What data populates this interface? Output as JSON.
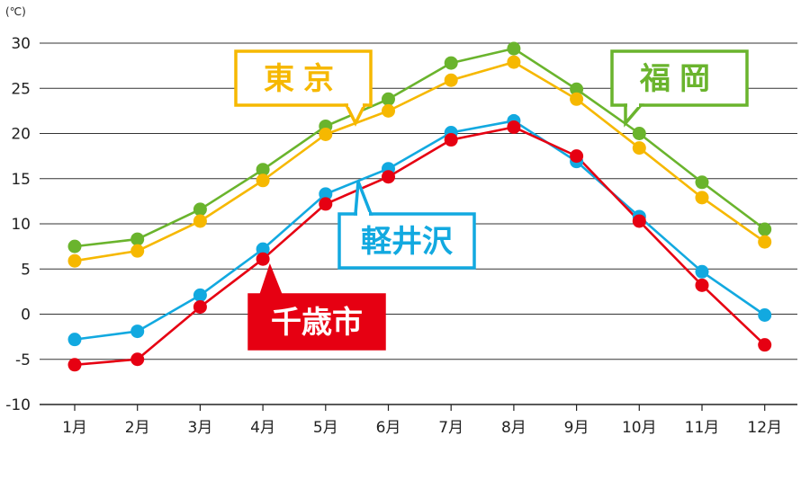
{
  "chart_data": {
    "type": "line",
    "unit": "(℃)",
    "categories": [
      "1月",
      "2月",
      "3月",
      "4月",
      "5月",
      "6月",
      "7月",
      "8月",
      "9月",
      "10月",
      "11月",
      "12月"
    ],
    "ylim": [
      -10,
      30
    ],
    "yticks": [
      30,
      25,
      20,
      15,
      10,
      5,
      0,
      -5,
      -10
    ],
    "grid": true,
    "series": [
      {
        "name": "福岡",
        "color": "#6ab42d",
        "values": [
          7.5,
          8.3,
          11.6,
          16.0,
          20.8,
          23.8,
          27.8,
          29.4,
          24.9,
          20.0,
          14.6,
          9.4
        ]
      },
      {
        "name": "東京",
        "color": "#f6b800",
        "values": [
          5.9,
          7.0,
          10.3,
          14.8,
          19.9,
          22.5,
          25.9,
          27.9,
          23.8,
          18.4,
          12.9,
          8.0
        ]
      },
      {
        "name": "軽井沢",
        "color": "#12a9e0",
        "values": [
          -2.8,
          -1.9,
          2.1,
          7.2,
          13.3,
          16.1,
          20.1,
          21.4,
          16.9,
          10.8,
          4.7,
          -0.1
        ]
      },
      {
        "name": "千歳市",
        "color": "#e60012",
        "values": [
          -5.6,
          -5.0,
          0.8,
          6.1,
          12.2,
          15.2,
          19.3,
          20.7,
          17.5,
          10.3,
          3.2,
          -3.4
        ]
      }
    ]
  }
}
